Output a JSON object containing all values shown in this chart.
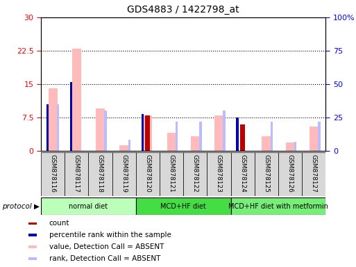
{
  "title": "GDS4883 / 1422798_at",
  "samples": [
    "GSM878116",
    "GSM878117",
    "GSM878118",
    "GSM878119",
    "GSM878120",
    "GSM878121",
    "GSM878122",
    "GSM878123",
    "GSM878124",
    "GSM878125",
    "GSM878126",
    "GSM878127"
  ],
  "value_absent": [
    14.0,
    23.0,
    9.5,
    1.2,
    8.0,
    4.0,
    3.2,
    8.0,
    null,
    3.2,
    1.8,
    5.5
  ],
  "rank_absent": [
    10.5,
    null,
    9.0,
    2.5,
    null,
    6.5,
    6.5,
    9.0,
    null,
    6.5,
    2.0,
    6.5
  ],
  "count": [
    null,
    null,
    null,
    null,
    8.0,
    null,
    null,
    null,
    6.0,
    null,
    null,
    null
  ],
  "percentile": [
    10.5,
    15.5,
    null,
    null,
    8.3,
    null,
    null,
    null,
    7.5,
    null,
    null,
    null
  ],
  "ylim_left": [
    0,
    30
  ],
  "ylim_right": [
    0,
    100
  ],
  "yticks_left": [
    0,
    7.5,
    15,
    22.5,
    30
  ],
  "yticks_right": [
    0,
    25,
    50,
    75,
    100
  ],
  "ytick_labels_left": [
    "0",
    "7.5",
    "15",
    "22.5",
    "30"
  ],
  "ytick_labels_right": [
    "0",
    "25",
    "50",
    "75",
    "100%"
  ],
  "protocols": [
    {
      "label": "normal diet",
      "start": 0,
      "end": 3,
      "color": "#bbffbb"
    },
    {
      "label": "MCD+HF diet",
      "start": 4,
      "end": 7,
      "color": "#44dd44"
    },
    {
      "label": "MCD+HF diet with metformin",
      "start": 8,
      "end": 11,
      "color": "#77ee77"
    }
  ],
  "color_value_absent": "#ffbbbb",
  "color_rank_absent": "#bbbbff",
  "color_count": "#bb0000",
  "color_percentile": "#0000aa",
  "bg_color_samples": "#d8d8d8",
  "legend_items": [
    {
      "color": "#bb0000",
      "label": "count"
    },
    {
      "color": "#0000aa",
      "label": "percentile rank within the sample"
    },
    {
      "color": "#ffbbbb",
      "label": "value, Detection Call = ABSENT"
    },
    {
      "color": "#bbbbff",
      "label": "rank, Detection Call = ABSENT"
    }
  ]
}
